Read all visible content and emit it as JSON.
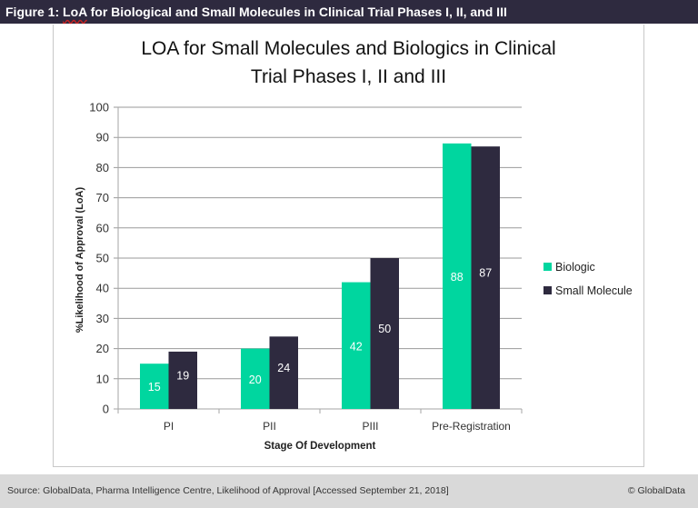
{
  "header": {
    "figure_label": "Figure 1: ",
    "title_loa": "LoA",
    "title_rest": " for Biological and Small Molecules in Clinical Trial Phases I, II, and III"
  },
  "footer": {
    "source": "Source: GlobalData, Pharma Intelligence Centre, Likelihood of Approval  [Accessed September 21, 2018]",
    "copyright": "© GlobalData"
  },
  "chart_data": {
    "type": "bar",
    "title_line1": "LOA for Small Molecules and Biologics in Clinical",
    "title_line2": "Trial Phases I, II and III",
    "xlabel": "Stage Of Development",
    "ylabel": "%Likelihood of Approval (LoA)",
    "ylim": [
      0,
      100
    ],
    "yticks": [
      0,
      10,
      20,
      30,
      40,
      50,
      60,
      70,
      80,
      90,
      100
    ],
    "grid": true,
    "legend_position": "right",
    "categories": [
      "PI",
      "PII",
      "PIII",
      "Pre-Registration"
    ],
    "series": [
      {
        "name": "Biologic",
        "color": "#00d69f",
        "label_color": "#ffffff",
        "values": [
          15,
          20,
          42,
          88
        ]
      },
      {
        "name": "Small Molecule",
        "color": "#2e2a3f",
        "label_color": "#ffffff",
        "values": [
          19,
          24,
          50,
          87
        ]
      }
    ]
  }
}
